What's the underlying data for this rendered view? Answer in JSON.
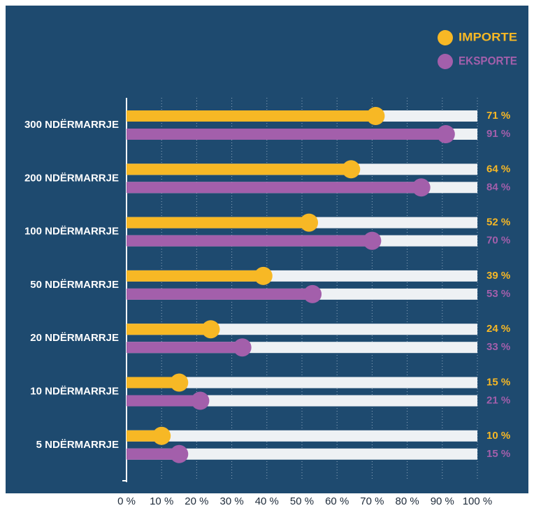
{
  "chart_data": {
    "type": "lollipop-bar",
    "categories": [
      "300 NDËRMARRJE",
      "200 NDËRMARRJE",
      "100 NDËRMARRJE",
      "50 NDËRMARRJE",
      "20 NDËRMARRJE",
      "10 NDËRMARRJE",
      "5 NDËRMARRJE"
    ],
    "series": [
      {
        "name": "IMPORTE",
        "color": "#f7b825",
        "values": [
          71,
          64,
          52,
          39,
          24,
          15,
          10
        ],
        "value_labels": [
          "71 %",
          "64 %",
          "52 %",
          "39 %",
          "24 %",
          "15 %",
          "10 %"
        ]
      },
      {
        "name": "EKSPORTE",
        "color": "#a35fab",
        "values": [
          91,
          84,
          70,
          53,
          33,
          21,
          15
        ],
        "value_labels": [
          "91 %",
          "84 %",
          "70 %",
          "53 %",
          "33 %",
          "21 %",
          "15 %"
        ]
      }
    ],
    "xlim": [
      0,
      100
    ],
    "xticks": [
      {
        "value": 0,
        "label": "0 %"
      },
      {
        "value": 10,
        "label": "10 %"
      },
      {
        "value": 20,
        "label": "20 %"
      },
      {
        "value": 30,
        "label": "30 %"
      },
      {
        "value": 40,
        "label": "40 %"
      },
      {
        "value": 50,
        "label": "50 %"
      },
      {
        "value": 60,
        "label": "60 %"
      },
      {
        "value": 70,
        "label": "70 %"
      },
      {
        "value": 80,
        "label": "80 %"
      },
      {
        "value": 90,
        "label": "90 %"
      },
      {
        "value": 100,
        "label": "100 %"
      }
    ],
    "grid": true,
    "legend": "top-right"
  }
}
